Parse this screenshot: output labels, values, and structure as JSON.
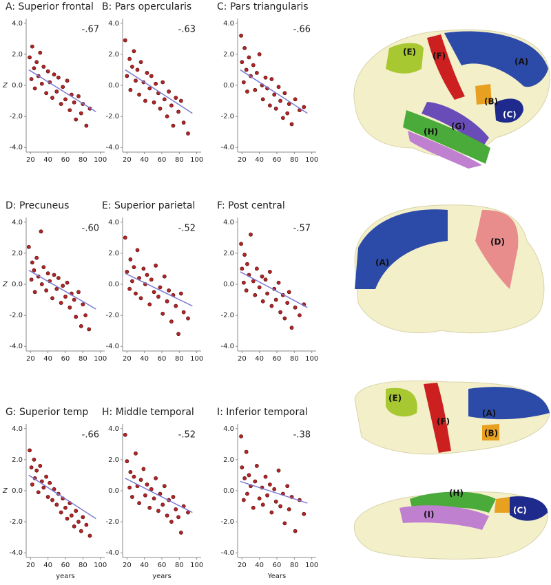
{
  "chart_data": [
    {
      "type": "scatter",
      "title": "A: Superior frontal",
      "annotation": "-.67",
      "ylabel": "Z",
      "color": "#b32424",
      "line_color": "#7b7bd0",
      "x": [
        19,
        21,
        22,
        24,
        25,
        27,
        29,
        31,
        33,
        35,
        38,
        40,
        42,
        45,
        47,
        50,
        52,
        55,
        57,
        60,
        62,
        65,
        67,
        70,
        72,
        75,
        78,
        80,
        84,
        88
      ],
      "y": [
        1.8,
        0.4,
        2.5,
        1.1,
        -0.2,
        1.5,
        0.6,
        2.1,
        0.1,
        1.2,
        -0.5,
        0.9,
        0.2,
        -0.8,
        0.7,
        -0.4,
        0.5,
        -1.2,
        -0.1,
        -0.9,
        0.3,
        -1.6,
        -0.6,
        -1.1,
        -2.2,
        -0.7,
        -1.8,
        -1.2,
        -2.6,
        -1.5
      ],
      "line": {
        "x": [
          18,
          95
        ],
        "y": [
          1.0,
          -1.7
        ]
      },
      "xlim": [
        15,
        105
      ],
      "xticks": [
        20,
        40,
        60,
        80,
        100
      ],
      "ylim": [
        -4.3,
        4.3
      ],
      "yticks": [
        {
          "value": -4,
          "label": "-4.0"
        },
        {
          "value": -2,
          "label": "-2.0"
        },
        {
          "value": 0,
          "label": "0.0"
        },
        {
          "value": 2,
          "label": "2.0"
        },
        {
          "value": 4,
          "label": "4.0"
        }
      ]
    },
    {
      "type": "scatter",
      "title": "B: Pars opercularis",
      "annotation": "-.63",
      "color": "#b32424",
      "line_color": "#7b7bd0",
      "x": [
        18,
        20,
        23,
        24,
        26,
        28,
        30,
        32,
        34,
        36,
        39,
        41,
        43,
        46,
        48,
        51,
        53,
        56,
        58,
        61,
        63,
        66,
        68,
        71,
        73,
        76,
        79,
        82,
        85,
        90
      ],
      "y": [
        2.9,
        0.6,
        1.7,
        -0.3,
        1.2,
        2.2,
        0.3,
        1.0,
        -0.6,
        1.5,
        0.2,
        -1.0,
        0.8,
        -0.2,
        0.6,
        -1.1,
        0.1,
        -0.5,
        -1.5,
        0.2,
        -0.9,
        -2.0,
        -0.4,
        -1.3,
        -2.6,
        -0.8,
        -1.7,
        -1.0,
        -2.4,
        -3.1
      ],
      "line": {
        "x": [
          18,
          95
        ],
        "y": [
          1.0,
          -1.8
        ]
      },
      "xlim": [
        15,
        105
      ],
      "xticks": [
        20,
        40,
        60,
        80,
        100
      ],
      "ylim": [
        -4.3,
        4.3
      ],
      "yticks": [
        {
          "value": -4,
          "label": "-4.0"
        },
        {
          "value": -2,
          "label": "-2.0"
        },
        {
          "value": 0,
          "label": "0.0"
        },
        {
          "value": 2,
          "label": "2.0"
        },
        {
          "value": 4,
          "label": "4.0"
        }
      ]
    },
    {
      "type": "scatter",
      "title": "C: Pars triangularis",
      "annotation": "-.66",
      "color": "#b32424",
      "line_color": "#7b7bd0",
      "x": [
        19,
        20,
        22,
        23,
        25,
        26,
        28,
        30,
        33,
        35,
        37,
        40,
        43,
        44,
        47,
        49,
        52,
        54,
        57,
        59,
        62,
        64,
        67,
        69,
        72,
        74,
        77,
        81,
        86,
        91
      ],
      "y": [
        3.2,
        1.5,
        0.2,
        2.4,
        1.0,
        -0.4,
        1.8,
        0.6,
        1.3,
        -0.3,
        0.8,
        2.0,
        0.0,
        -0.9,
        0.5,
        -0.2,
        -1.3,
        0.4,
        -0.6,
        -1.5,
        -0.1,
        -1.0,
        -2.1,
        -0.5,
        -1.8,
        -1.2,
        -2.5,
        -0.9,
        -1.6,
        -1.4
      ],
      "line": {
        "x": [
          18,
          95
        ],
        "y": [
          1.0,
          -1.8
        ]
      },
      "xlim": [
        15,
        105
      ],
      "xticks": [
        20,
        40,
        60,
        80,
        100
      ],
      "ylim": [
        -4.3,
        4.3
      ],
      "yticks": [
        {
          "value": -4,
          "label": "-4.0"
        },
        {
          "value": -2,
          "label": "-2.0"
        },
        {
          "value": 0,
          "label": "0.0"
        },
        {
          "value": 2,
          "label": "2.0"
        },
        {
          "value": 4,
          "label": "4.0"
        }
      ]
    },
    {
      "type": "scatter",
      "title": "D: Precuneus",
      "annotation": "-.60",
      "ylabel": "Z",
      "color": "#b32424",
      "line_color": "#7b7bd0",
      "x": [
        18,
        21,
        22,
        24,
        25,
        27,
        29,
        32,
        33,
        35,
        38,
        40,
        42,
        45,
        47,
        50,
        52,
        55,
        57,
        60,
        62,
        65,
        67,
        70,
        72,
        75,
        78,
        80,
        83,
        87
      ],
      "y": [
        2.4,
        0.3,
        1.4,
        0.9,
        -0.5,
        1.7,
        0.5,
        3.4,
        0.0,
        1.1,
        -0.4,
        0.7,
        0.2,
        -0.9,
        0.6,
        -0.3,
        0.4,
        -1.2,
        -0.1,
        -0.8,
        0.1,
        -1.5,
        -0.6,
        -1.0,
        -2.1,
        -0.5,
        -2.7,
        -1.3,
        -2.0,
        -2.9
      ],
      "line": {
        "x": [
          18,
          95
        ],
        "y": [
          0.9,
          -1.6
        ]
      },
      "xlim": [
        15,
        105
      ],
      "xticks": [
        20,
        40,
        60,
        80,
        100
      ],
      "ylim": [
        -4.3,
        4.3
      ],
      "yticks": [
        {
          "value": -4,
          "label": "-4.0"
        },
        {
          "value": -2,
          "label": "-2.0"
        },
        {
          "value": 0,
          "label": "0.0"
        },
        {
          "value": 2,
          "label": "2.0"
        },
        {
          "value": 4,
          "label": "4.0"
        }
      ]
    },
    {
      "type": "scatter",
      "title": "E: Superior parietal",
      "annotation": "-.52",
      "color": "#b32424",
      "line_color": "#7b7bd0",
      "x": [
        18,
        20,
        23,
        24,
        26,
        28,
        30,
        32,
        34,
        36,
        39,
        41,
        43,
        46,
        48,
        51,
        53,
        56,
        58,
        61,
        63,
        66,
        68,
        71,
        73,
        76,
        79,
        82,
        85,
        90
      ],
      "y": [
        3.0,
        0.8,
        -0.3,
        1.6,
        0.2,
        1.1,
        -0.6,
        2.2,
        0.4,
        -0.9,
        1.0,
        0.0,
        0.6,
        -1.3,
        0.3,
        -0.5,
        1.2,
        -0.8,
        -0.2,
        -1.9,
        0.5,
        -1.1,
        -0.4,
        -2.4,
        -0.7,
        -1.4,
        -3.2,
        -0.6,
        -1.8,
        -2.2
      ],
      "line": {
        "x": [
          18,
          95
        ],
        "y": [
          0.7,
          -1.4
        ]
      },
      "xlim": [
        15,
        105
      ],
      "xticks": [
        20,
        40,
        60,
        80,
        100
      ],
      "ylim": [
        -4.3,
        4.3
      ],
      "yticks": [
        {
          "value": -4,
          "label": "-4.0"
        },
        {
          "value": -2,
          "label": "-2.0"
        },
        {
          "value": 0,
          "label": "0.0"
        },
        {
          "value": 2,
          "label": "2.0"
        },
        {
          "value": 4,
          "label": "4.0"
        }
      ]
    },
    {
      "type": "scatter",
      "title": "F: Post central",
      "annotation": "-.57",
      "color": "#b32424",
      "line_color": "#7b7bd0",
      "x": [
        19,
        20,
        22,
        23,
        25,
        26,
        28,
        30,
        33,
        35,
        37,
        40,
        43,
        44,
        47,
        49,
        52,
        54,
        57,
        59,
        62,
        64,
        67,
        69,
        72,
        74,
        77,
        81,
        86,
        91
      ],
      "y": [
        2.6,
        1.0,
        0.1,
        1.9,
        -0.4,
        1.3,
        0.6,
        3.2,
        0.2,
        -0.7,
        1.0,
        -0.2,
        0.5,
        -1.1,
        0.3,
        -0.6,
        0.8,
        -1.4,
        -0.3,
        -1.0,
        0.1,
        -1.8,
        -0.7,
        -2.2,
        -1.2,
        -0.5,
        -2.8,
        -1.5,
        -2.0,
        -1.3
      ],
      "line": {
        "x": [
          18,
          95
        ],
        "y": [
          0.8,
          -1.5
        ]
      },
      "xlim": [
        15,
        105
      ],
      "xticks": [
        20,
        40,
        60,
        80,
        100
      ],
      "ylim": [
        -4.3,
        4.3
      ],
      "yticks": [
        {
          "value": -4,
          "label": "-4.0"
        },
        {
          "value": -2,
          "label": "-2.0"
        },
        {
          "value": 0,
          "label": "0.0"
        },
        {
          "value": 2,
          "label": "2.0"
        },
        {
          "value": 4,
          "label": "4.0"
        }
      ]
    },
    {
      "type": "scatter",
      "title": "G: Superior temp",
      "annotation": "-.66",
      "ylabel": "Z",
      "xlabel": "years",
      "color": "#b32424",
      "line_color": "#7b7bd0",
      "x": [
        19,
        21,
        22,
        24,
        25,
        27,
        29,
        31,
        33,
        35,
        38,
        40,
        42,
        45,
        47,
        50,
        52,
        55,
        57,
        60,
        62,
        65,
        67,
        70,
        72,
        75,
        78,
        80,
        84,
        88
      ],
      "y": [
        2.6,
        1.5,
        0.4,
        2.0,
        0.8,
        1.3,
        -0.1,
        1.6,
        0.6,
        0.2,
        0.9,
        -0.4,
        0.5,
        -0.6,
        0.1,
        -0.9,
        -0.2,
        -1.4,
        -0.5,
        -1.1,
        -1.8,
        -0.8,
        -1.6,
        -2.3,
        -1.3,
        -2.0,
        -2.6,
        -1.7,
        -2.2,
        -2.9
      ],
      "line": {
        "x": [
          18,
          95
        ],
        "y": [
          1.0,
          -1.8
        ]
      },
      "xlim": [
        15,
        105
      ],
      "xticks": [
        20,
        40,
        60,
        80,
        100
      ],
      "ylim": [
        -4.3,
        4.3
      ],
      "yticks": [
        {
          "value": -4,
          "label": "-4.0"
        },
        {
          "value": -2,
          "label": "-2.0"
        },
        {
          "value": 0,
          "label": "0.0"
        },
        {
          "value": 2,
          "label": "2.0"
        },
        {
          "value": 4,
          "label": "4.0"
        }
      ]
    },
    {
      "type": "scatter",
      "title": "H: Middle temporal",
      "annotation": "-.52",
      "xlabel": "years",
      "color": "#b32424",
      "line_color": "#7b7bd0",
      "x": [
        18,
        20,
        23,
        24,
        26,
        28,
        30,
        32,
        34,
        36,
        39,
        41,
        43,
        46,
        48,
        51,
        53,
        56,
        58,
        61,
        63,
        66,
        68,
        71,
        73,
        76,
        79,
        82,
        85,
        90
      ],
      "y": [
        3.6,
        1.9,
        0.2,
        1.2,
        -0.4,
        0.9,
        2.4,
        0.3,
        -0.8,
        0.7,
        1.4,
        -0.3,
        0.4,
        -1.1,
        0.1,
        -0.5,
        0.8,
        -1.3,
        -0.2,
        -0.9,
        0.3,
        -1.6,
        -0.6,
        -2.0,
        -0.4,
        -1.2,
        -1.7,
        -2.7,
        -1.0,
        -1.4
      ],
      "line": {
        "x": [
          18,
          95
        ],
        "y": [
          0.8,
          -1.4
        ]
      },
      "xlim": [
        15,
        105
      ],
      "xticks": [
        20,
        40,
        60,
        80,
        100
      ],
      "ylim": [
        -4.3,
        4.3
      ],
      "yticks": [
        {
          "value": -4,
          "label": "-4.0"
        },
        {
          "value": -2,
          "label": "-2.0"
        },
        {
          "value": 0,
          "label": "0.0"
        },
        {
          "value": 2,
          "label": "2.0"
        },
        {
          "value": 4,
          "label": "4.0"
        }
      ]
    },
    {
      "type": "scatter",
      "title": "I: Inferior temporal",
      "annotation": "-.38",
      "xlabel": "Years",
      "color": "#b32424",
      "line_color": "#7b7bd0",
      "x": [
        19,
        20,
        22,
        23,
        25,
        26,
        28,
        30,
        33,
        35,
        37,
        40,
        43,
        44,
        47,
        49,
        52,
        54,
        57,
        59,
        62,
        64,
        67,
        69,
        72,
        74,
        77,
        81,
        86,
        91
      ],
      "y": [
        3.5,
        1.5,
        -0.6,
        0.8,
        2.5,
        -0.2,
        1.0,
        0.3,
        -1.1,
        0.6,
        1.6,
        -0.5,
        0.2,
        -0.9,
        0.9,
        -0.3,
        0.4,
        -1.4,
        0.1,
        -0.7,
        1.3,
        -1.0,
        -0.2,
        -2.1,
        0.3,
        -1.2,
        -0.4,
        -2.6,
        -0.6,
        -1.5
      ],
      "line": {
        "x": [
          18,
          95
        ],
        "y": [
          0.6,
          -0.8
        ]
      },
      "xlim": [
        15,
        105
      ],
      "xticks": [
        20,
        40,
        60,
        80,
        100
      ],
      "ylim": [
        -4.3,
        4.3
      ],
      "yticks": [
        {
          "value": -4,
          "label": "-4.0"
        },
        {
          "value": -2,
          "label": "-2.0"
        },
        {
          "value": 0,
          "label": "0.0"
        },
        {
          "value": 2,
          "label": "2.0"
        },
        {
          "value": 4,
          "label": "4.0"
        }
      ]
    }
  ],
  "brain_images": [
    {
      "labels": [
        "(A)",
        "(B)",
        "(C)",
        "(E)",
        "(F)",
        "(G)",
        "(H)"
      ]
    },
    {
      "labels": [
        "(A)",
        "(D)"
      ]
    },
    {
      "labels": [
        "(A)",
        "(B)",
        "(E)",
        "(F)"
      ]
    },
    {
      "labels": [
        "(C)",
        "(H)",
        "(I)"
      ]
    }
  ]
}
